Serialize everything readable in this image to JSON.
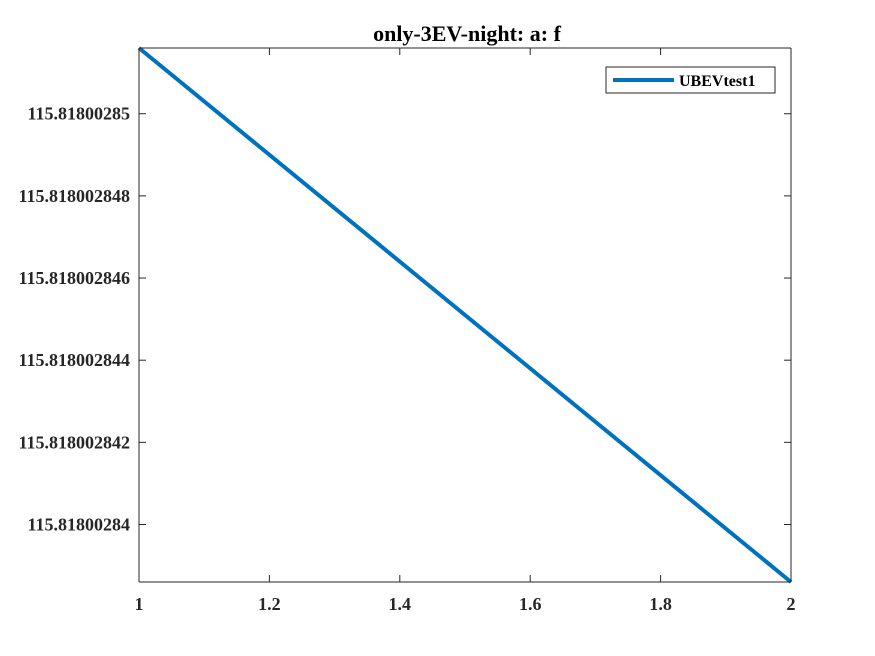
{
  "chart_data": {
    "type": "line",
    "title": "only-3EV-night: a: f",
    "xlabel": "",
    "ylabel": "",
    "xlim": [
      1,
      2
    ],
    "ylim": [
      115.8180028386,
      115.8180028516
    ],
    "x_ticks": [
      1,
      1.2,
      1.4,
      1.6,
      1.8,
      2
    ],
    "x_tick_labels": [
      "1",
      "1.2",
      "1.4",
      "1.6",
      "1.8",
      "2"
    ],
    "y_ticks": [
      115.81800284,
      115.818002842,
      115.818002844,
      115.818002846,
      115.818002848,
      115.81800285
    ],
    "y_tick_labels": [
      "115.81800284",
      "115.818002842",
      "115.818002844",
      "115.818002846",
      "115.818002848",
      "115.81800285"
    ],
    "grid": false,
    "legend_position": "top-right",
    "series": [
      {
        "name": "UBEVtest1",
        "color": "#0072BD",
        "x": [
          1,
          2
        ],
        "y": [
          115.8180028516,
          115.8180028386
        ]
      }
    ]
  }
}
